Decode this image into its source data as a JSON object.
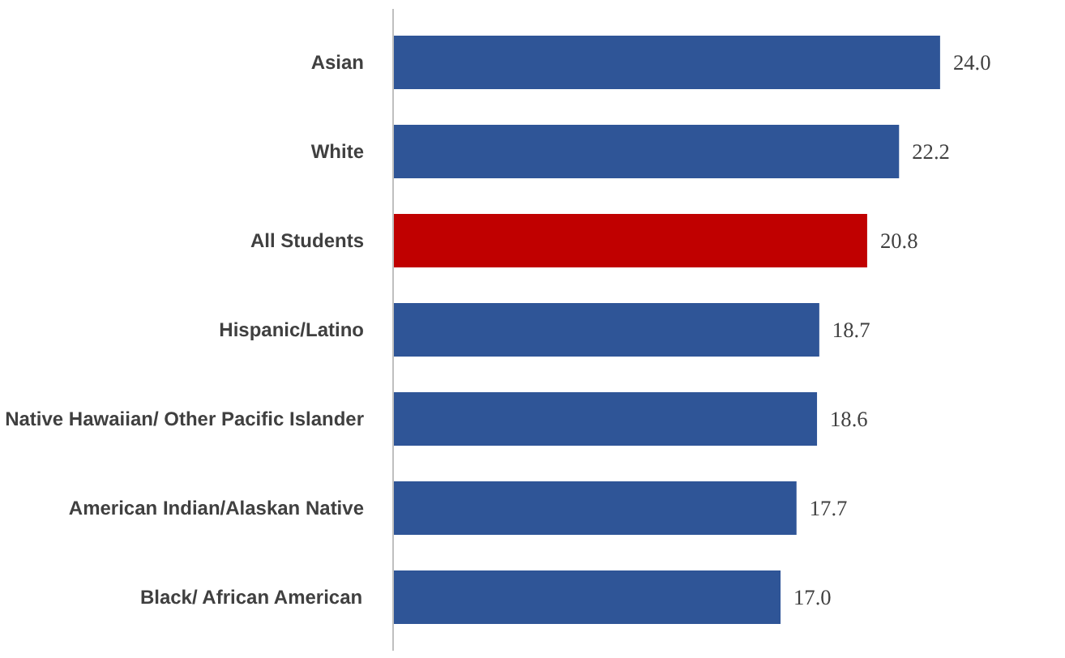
{
  "chart_data": {
    "type": "bar",
    "orientation": "horizontal",
    "categories": [
      "Asian",
      "White",
      "All Students",
      "Hispanic/Latino",
      "Native Hawaiian/ Other Pacific Islander",
      "American Indian/Alaskan Native",
      "Black/ African American"
    ],
    "values": [
      24.0,
      22.2,
      20.8,
      18.7,
      18.6,
      17.7,
      17.0
    ],
    "value_labels": [
      "24.0",
      "22.2",
      "20.8",
      "18.7",
      "18.6",
      "17.7",
      "17.0"
    ],
    "colors": [
      "#2f5597",
      "#2f5597",
      "#c00000",
      "#2f5597",
      "#2f5597",
      "#2f5597",
      "#2f5597"
    ],
    "tick_labels": "y"
  }
}
